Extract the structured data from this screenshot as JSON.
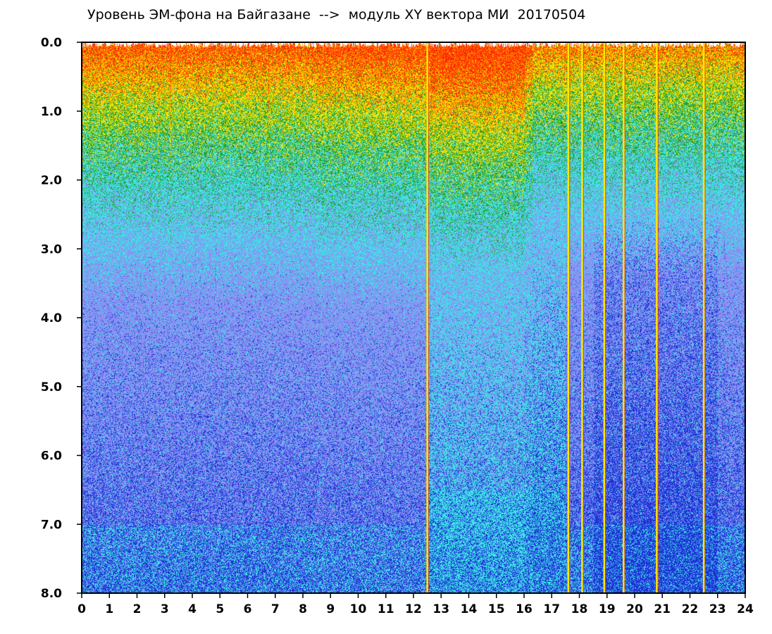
{
  "chart_data": {
    "type": "heatmap",
    "title": "Уровень ЭМ-фона на Байгазане  -->  модуль XY вектора МИ  20170504",
    "xlabel": "",
    "ylabel": "",
    "xlim": [
      0,
      24
    ],
    "ylim": [
      0.0,
      8.0
    ],
    "y_inverted": true,
    "grid": false,
    "x_ticks": [
      "0",
      "1",
      "2",
      "3",
      "4",
      "5",
      "6",
      "7",
      "8",
      "9",
      "10",
      "11",
      "12",
      "13",
      "14",
      "15",
      "16",
      "17",
      "18",
      "19",
      "20",
      "21",
      "22",
      "23",
      "24"
    ],
    "y_ticks": [
      "0.0",
      "1.0",
      "2.0",
      "3.0",
      "4.0",
      "5.0",
      "6.0",
      "7.0",
      "8.0"
    ],
    "x_tick_values": [
      0,
      1,
      2,
      3,
      4,
      5,
      6,
      7,
      8,
      9,
      10,
      11,
      12,
      13,
      14,
      15,
      16,
      17,
      18,
      19,
      20,
      21,
      22,
      23,
      24
    ],
    "y_tick_values": [
      0,
      1,
      2,
      3,
      4,
      5,
      6,
      7,
      8
    ],
    "color_bands": [
      {
        "color": "#ff2a00",
        "from": 0.0,
        "to": 0.3
      },
      {
        "color": "#ffe600",
        "from": 0.3,
        "to": 0.9
      },
      {
        "color": "#1f9a1a",
        "from": 0.9,
        "to": 1.9
      },
      {
        "color": "#3fe6e6",
        "from": 1.9,
        "to": 3.0
      },
      {
        "color": "#8a8ef2",
        "from": 3.0,
        "to": 5.0
      },
      {
        "color": "#2030d8",
        "from": 5.0,
        "to": 8.0
      }
    ],
    "spikes_hours": [
      12.5,
      17.6,
      18.1,
      18.9,
      19.6,
      20.8,
      22.5
    ],
    "colors": {
      "red": "#ff2a00",
      "yellow": "#ffe600",
      "green": "#1f9a1a",
      "cyan": "#3fe6e6",
      "light_blue": "#8a8ef2",
      "dark_blue": "#2030d8",
      "axis": "#000000"
    }
  }
}
